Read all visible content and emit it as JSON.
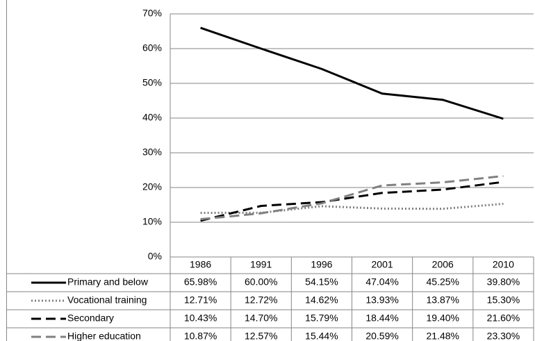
{
  "chart_data": {
    "type": "line",
    "categories": [
      "1986",
      "1991",
      "1996",
      "2001",
      "2006",
      "2010"
    ],
    "series": [
      {
        "name": "Primary and below",
        "color": "#000000",
        "dash": "solid",
        "values": [
          65.98,
          60.0,
          54.15,
          47.04,
          45.25,
          39.8
        ],
        "value_labels": [
          "65.98%",
          "60.00%",
          "54.15%",
          "47.04%",
          "45.25%",
          "39.80%"
        ]
      },
      {
        "name": "Vocational training",
        "color": "#808080",
        "dash": "dotted",
        "values": [
          12.71,
          12.72,
          14.62,
          13.93,
          13.87,
          15.3
        ],
        "value_labels": [
          "12.71%",
          "12.72%",
          "14.62%",
          "13.93%",
          "13.87%",
          "15.30%"
        ]
      },
      {
        "name": "Secondary",
        "color": "#000000",
        "dash": "dashed",
        "values": [
          10.43,
          14.7,
          15.79,
          18.44,
          19.4,
          21.6
        ],
        "value_labels": [
          "10.43%",
          "14.70%",
          "15.79%",
          "18.44%",
          "19.40%",
          "21.60%"
        ]
      },
      {
        "name": "Higher education",
        "color": "#808080",
        "dash": "dashed",
        "values": [
          10.87,
          12.57,
          15.44,
          20.59,
          21.48,
          23.3
        ],
        "value_labels": [
          "10.87%",
          "12.57%",
          "15.44%",
          "20.59%",
          "21.48%",
          "23.30%"
        ]
      }
    ],
    "ylim": [
      0,
      70
    ],
    "yticks": [
      {
        "value": 0,
        "label": "0%"
      },
      {
        "value": 10,
        "label": "10%"
      },
      {
        "value": 20,
        "label": "20%"
      },
      {
        "value": 30,
        "label": "30%"
      },
      {
        "value": 40,
        "label": "40%"
      },
      {
        "value": 50,
        "label": "50%"
      },
      {
        "value": 60,
        "label": "60%"
      },
      {
        "value": 70,
        "label": "70%"
      }
    ],
    "grid": true
  }
}
